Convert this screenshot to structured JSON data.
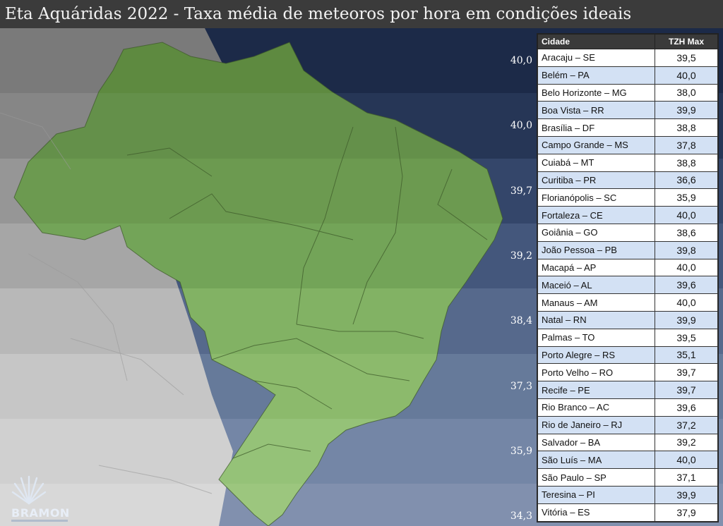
{
  "title": "Eta Aquáridas 2022 - Taxa média de meteoros por hora em condições ideais",
  "band_labels": [
    "40,0",
    "40,0",
    "39,7",
    "39,2",
    "38,4",
    "37,3",
    "35,9",
    "34,3"
  ],
  "band_colors": {
    "ocean": [
      "#1c2a48",
      "#263656",
      "#34466a",
      "#44577c",
      "#56698c",
      "#667a9a",
      "#7486a6",
      "#8190ae"
    ],
    "land": [
      "#5e8a40",
      "#64904a",
      "#6c9a50",
      "#73a458",
      "#82b264",
      "#8cba6c",
      "#95c278",
      "#9cc67e"
    ],
    "neighbor": [
      "#7a7a7a",
      "#868686",
      "#969696",
      "#a6a6a6",
      "#b8b8b8",
      "#c6c6c6",
      "#d0d0d0",
      "#d8d8d8"
    ]
  },
  "table": {
    "header_city": "Cidade",
    "header_value": "TZH Max",
    "rows": [
      {
        "city": "Aracaju – SE",
        "value": "39,5"
      },
      {
        "city": "Belém – PA",
        "value": "40,0"
      },
      {
        "city": "Belo Horizonte – MG",
        "value": "38,0"
      },
      {
        "city": "Boa Vista – RR",
        "value": "39,9"
      },
      {
        "city": "Brasília – DF",
        "value": "38,8"
      },
      {
        "city": "Campo Grande – MS",
        "value": "37,8"
      },
      {
        "city": "Cuiabá – MT",
        "value": "38,8"
      },
      {
        "city": "Curitiba – PR",
        "value": "36,6"
      },
      {
        "city": "Florianópolis – SC",
        "value": "35,9"
      },
      {
        "city": "Fortaleza – CE",
        "value": "40,0"
      },
      {
        "city": "Goiânia – GO",
        "value": "38,6"
      },
      {
        "city": "João Pessoa – PB",
        "value": "39,8"
      },
      {
        "city": "Macapá – AP",
        "value": "40,0"
      },
      {
        "city": "Maceió – AL",
        "value": "39,6"
      },
      {
        "city": "Manaus – AM",
        "value": "40,0"
      },
      {
        "city": "Natal – RN",
        "value": "39,9"
      },
      {
        "city": "Palmas – TO",
        "value": "39,5"
      },
      {
        "city": "Porto Alegre – RS",
        "value": "35,1"
      },
      {
        "city": "Porto Velho – RO",
        "value": "39,7"
      },
      {
        "city": "Recife – PE",
        "value": "39,7"
      },
      {
        "city": "Rio Branco – AC",
        "value": "39,6"
      },
      {
        "city": "Rio de Janeiro – RJ",
        "value": "37,2"
      },
      {
        "city": "Salvador – BA",
        "value": "39,2"
      },
      {
        "city": "São Luís – MA",
        "value": "40,0"
      },
      {
        "city": "São Paulo – SP",
        "value": "37,1"
      },
      {
        "city": "Teresina – PI",
        "value": "39,9"
      },
      {
        "city": "Vitória – ES",
        "value": "37,9"
      }
    ]
  },
  "logo": {
    "text": "BRAMON"
  }
}
